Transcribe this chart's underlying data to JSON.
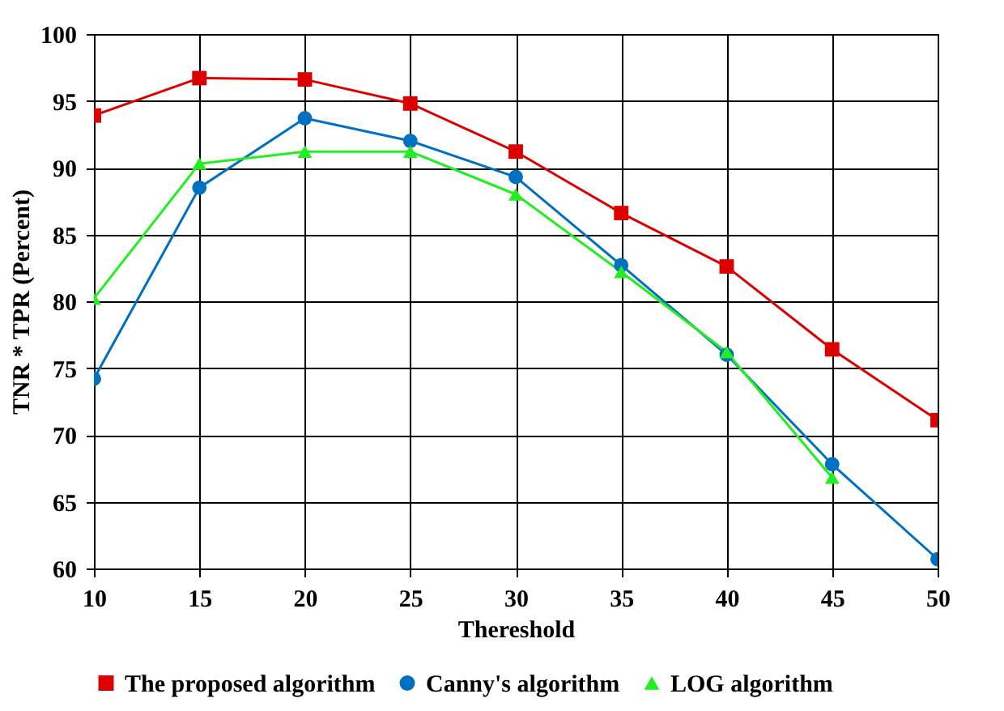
{
  "chart_data": {
    "type": "line",
    "xlabel": "Thereshold",
    "ylabel": "TNR * TPR (Percent)",
    "x": [
      10,
      15,
      20,
      25,
      30,
      35,
      40,
      45,
      50
    ],
    "xlim": [
      10,
      50
    ],
    "xticks": [
      10,
      15,
      20,
      25,
      30,
      35,
      40,
      45,
      50
    ],
    "ylim": [
      60,
      100
    ],
    "yticks": [
      60,
      65,
      70,
      75,
      80,
      85,
      90,
      95,
      100
    ],
    "grid": true,
    "legend": "bottom",
    "series": [
      {
        "name": "The proposed algorithm",
        "color": "#dd0000",
        "marker": "square",
        "values": [
          93.9,
          96.7,
          96.6,
          94.8,
          91.2,
          86.6,
          82.6,
          76.4,
          71.1
        ]
      },
      {
        "name": "Canny's algorithm",
        "color": "#0070c0",
        "marker": "circle",
        "values": [
          74.2,
          88.5,
          93.7,
          92.0,
          89.3,
          82.7,
          76.0,
          67.8,
          60.7
        ]
      },
      {
        "name": "LOG algorithm",
        "color": "#22ee22",
        "marker": "triangle",
        "values": [
          80.2,
          90.3,
          91.2,
          91.2,
          88.0,
          82.2,
          76.2,
          66.8,
          null
        ]
      }
    ]
  }
}
